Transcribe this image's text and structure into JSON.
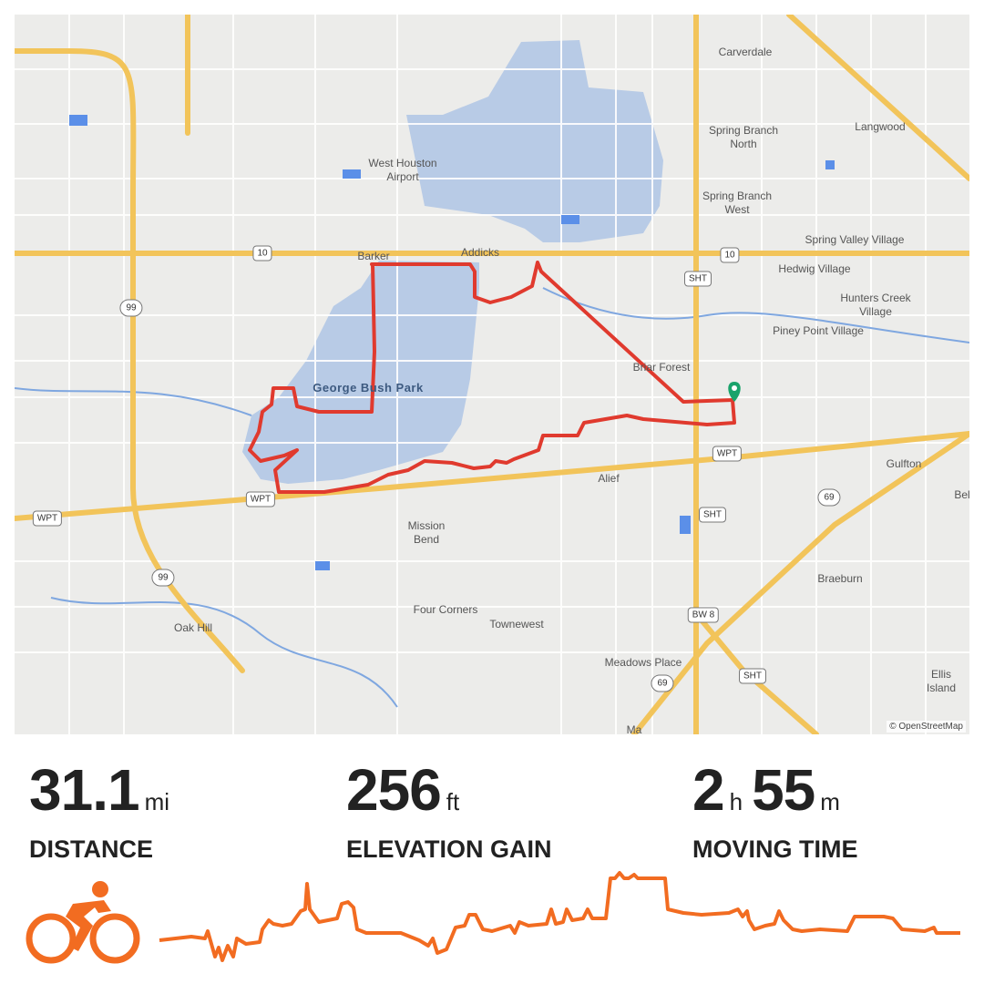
{
  "map": {
    "park_label": "George Bush Park",
    "attribution": "© OpenStreetMap",
    "place_labels": [
      "Carverdale",
      "Langwood",
      "Spring Branch North",
      "West Houston Airport",
      "Spring Branch West",
      "Barker",
      "Addicks",
      "Spring Valley Village",
      "Hedwig Village",
      "Hunters Creek Village",
      "Piney Point Village",
      "Briar Forest",
      "Alief",
      "Gulfton",
      "Mission Bend",
      "Braeburn",
      "Four Corners",
      "Townewest",
      "Oak Hill",
      "Meadows Place",
      "Ellis Island",
      "Bel",
      "Ma"
    ],
    "road_shields": [
      "10",
      "10",
      "SHT",
      "99",
      "WPT",
      "WPT",
      "WPT",
      "SHT",
      "69",
      "99",
      "BW 8",
      "69",
      "SHT"
    ],
    "route_color": "#e03a2e",
    "start_marker_color": "#1aa36b"
  },
  "stats": {
    "distance": {
      "value": "31.1",
      "unit": "mi",
      "label": "DISTANCE"
    },
    "elevation": {
      "value": "256",
      "unit": "ft",
      "label": "ELEVATION GAIN"
    },
    "moving_time": {
      "hours": "2",
      "hours_unit": "h",
      "minutes": "55",
      "minutes_unit": "m",
      "label": "MOVING TIME"
    }
  },
  "activity": {
    "type_icon": "cycling-icon",
    "accent_color": "#f26c21"
  }
}
